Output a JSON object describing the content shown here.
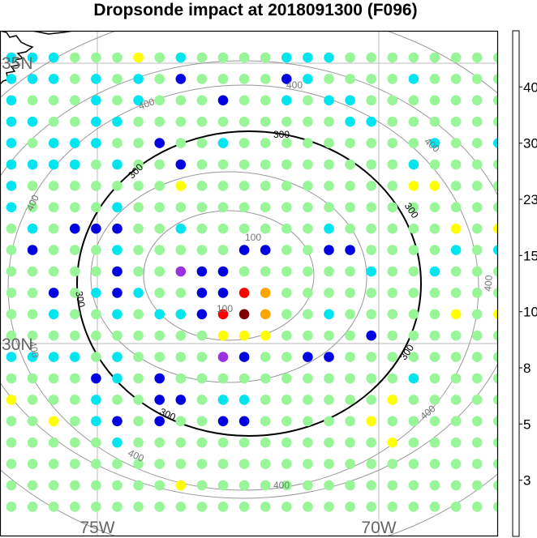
{
  "title": "Dropsonde impact at 2018091300 (F096)",
  "map": {
    "lon_labels": [
      "75W",
      "70W"
    ],
    "lat_labels": [
      "35N",
      "30N"
    ],
    "ring_labels": [
      "100",
      "300",
      "400"
    ]
  },
  "colorbar": {
    "tick_labels": [
      "3",
      "5",
      "8",
      "10",
      "15",
      "23",
      "30",
      "40"
    ],
    "colors": [
      "#4B2C8C",
      "#9B30E0",
      "#0000E0",
      "#00E5EE",
      "#98F598",
      "#FFFF00",
      "#FFA500",
      "#FF0000",
      "#800000"
    ]
  },
  "chart_data": {
    "type": "scatter",
    "title": "Dropsonde impact at 2018091300 (F096)",
    "value_scale_boundaries": [
      3,
      5,
      8,
      10,
      15,
      23,
      30,
      40
    ],
    "value_scale_colors": [
      "#4B2C8C",
      "#9B30E0",
      "#0000E0",
      "#00E5EE",
      "#98F598",
      "#FFFF00",
      "#FFA500",
      "#FF0000",
      "#800000"
    ],
    "contour_levels": [
      100,
      300,
      400
    ],
    "grid_note": "24x22 dropsonde grid; each cell is a colour class index (0=<3,1=3-5,2=5-8,3=8-10,4=10-15,5=15-23,6=23-30,7=30-40,8=>40)",
    "grid_rows": [
      "333444543444433344444444",
      "333434342444423444434444",
      "344434344424434334444444",
      "334433444444444433444444",
      "343334424434444444443443",
      "333343442444444444434444",
      "344444445444444444455444",
      "344443444444444444444444",
      "434222443444444344444545",
      "424443444442244224444343",
      "444442441224444443443444",
      "442432344227644444444444",
      "443443433278644344444545",
      "444444444455544442444444",
      "333343444412442244444444",
      "444423424444444444434444",
      "544434422433444444544444",
      "445432424422444445444444",
      "444443444444444444544444",
      "444444444444444444444444",
      "444444445444444444444444",
      "444444444444444444444444"
    ]
  }
}
